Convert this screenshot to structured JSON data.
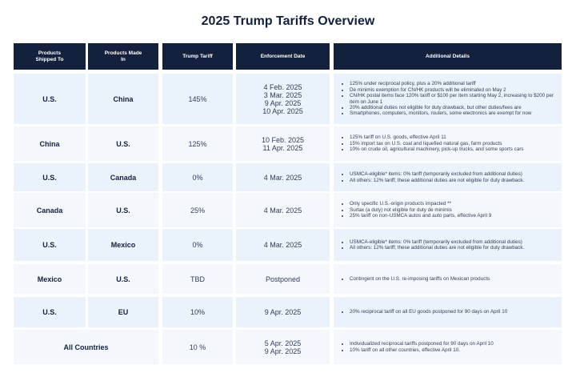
{
  "title": "2025 Trump Tariffs Overview",
  "table": {
    "headers": [
      "Products Shipped To",
      "Products Made In",
      "Trump Tariff",
      "Enforcement Date",
      "Additional Details"
    ],
    "rows": [
      {
        "shipped_to": "U.S.",
        "made_in": "China",
        "tariff": "145%",
        "dates": [
          "4 Feb. 2025",
          "3 Mar. 2025",
          "9 Apr. 2025",
          "10 Apr. 2025"
        ],
        "details": [
          "125% under reciprocal policy, plus a 20% additional tariff",
          "De minimis exemption for CN/HK products will be eliminated on May 2",
          "CN/HK postal items face 120% tariff or $100 per item starting May 2, increasing to $200 per item on June 1",
          "20% additional duties not eligible for duty drawback, but other duties/fees are",
          "Smartphones, computers, monitors, routers, some electronics are exempt for now"
        ]
      },
      {
        "shipped_to": "China",
        "made_in": "U.S.",
        "tariff": "125%",
        "dates": [
          "10 Feb. 2025",
          "11 Apr. 2025"
        ],
        "details": [
          "125% tariff on U.S. goods, effective April 11",
          "15% import tax on U.S. coal and liquefied natural gas, farm products",
          "10% on crude oil, agricultural machinery, pick-up trucks, and some sports cars"
        ]
      },
      {
        "shipped_to": "U.S.",
        "made_in": "Canada",
        "tariff": "0%",
        "dates": [
          "4 Mar. 2025"
        ],
        "details": [
          "USMCA-eligible* items: 0% tariff (temporarily excluded from additional duties)",
          "All others: 12% tariff; these additional duties are not eligible for duty drawback."
        ]
      },
      {
        "shipped_to": "Canada",
        "made_in": "U.S.",
        "tariff": "25%",
        "dates": [
          "4 Mar. 2025"
        ],
        "details": [
          "Only specific U.S.-origin products impacted **",
          "Surtax (a duty) not eligible for duty de minimis",
          "25% tariff on non-USMCA autos and auto parts, effective April 9"
        ]
      },
      {
        "shipped_to": "U.S.",
        "made_in": "Mexico",
        "tariff": "0%",
        "dates": [
          "4 Mar. 2025"
        ],
        "details": [
          "USMCA-eligible* items: 0% tariff (temporarily excluded from additional duties)",
          "All others: 12% tariff; these additional duties are not eligible for duty drawback."
        ]
      },
      {
        "shipped_to": "Mexico",
        "made_in": "U.S.",
        "tariff": "TBD",
        "dates": [
          "Postponed"
        ],
        "details": [
          "Contingent on the U.S. re-imposing tariffs on Mexican products"
        ]
      },
      {
        "shipped_to": "U.S.",
        "made_in": "EU",
        "tariff": "10%",
        "dates": [
          "9 Apr. 2025"
        ],
        "details": [
          "20% reciprocal tariff on all EU goods postponed for 90 days on April 10"
        ]
      },
      {
        "countries": "All Countries",
        "tariff": "10 %",
        "dates": [
          "5 Apr. 2025",
          "9 Apr. 2025"
        ],
        "details": [
          "Individualized reciprocal tariffs postponed for 90 days on April 10",
          "10% tariff on all other countries, effective April 10."
        ]
      }
    ]
  }
}
